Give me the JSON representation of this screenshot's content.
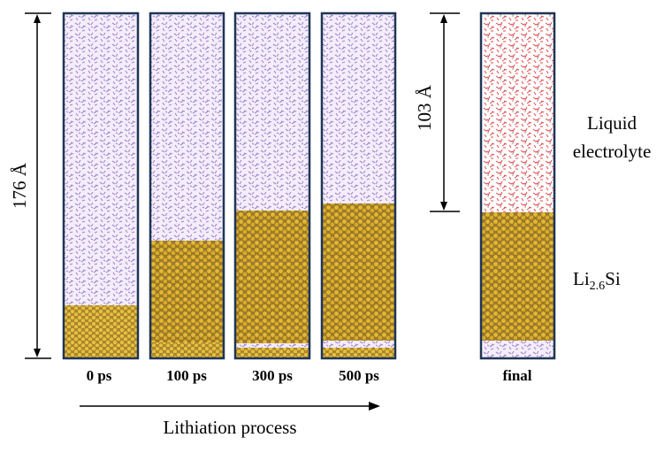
{
  "dimensions": {
    "total_height": "176 Å",
    "electrolyte_height": "103 Å"
  },
  "snapshots": [
    "0 ps",
    "100 ps",
    "300 ps",
    "500 ps"
  ],
  "final_label": "final",
  "process_label": "Lithiation process",
  "labels": {
    "electrolyte": [
      "Liquid",
      "electrolyte"
    ],
    "alloy": {
      "base": "Li",
      "subscript": "2.6",
      "suffix": "Si"
    }
  }
}
